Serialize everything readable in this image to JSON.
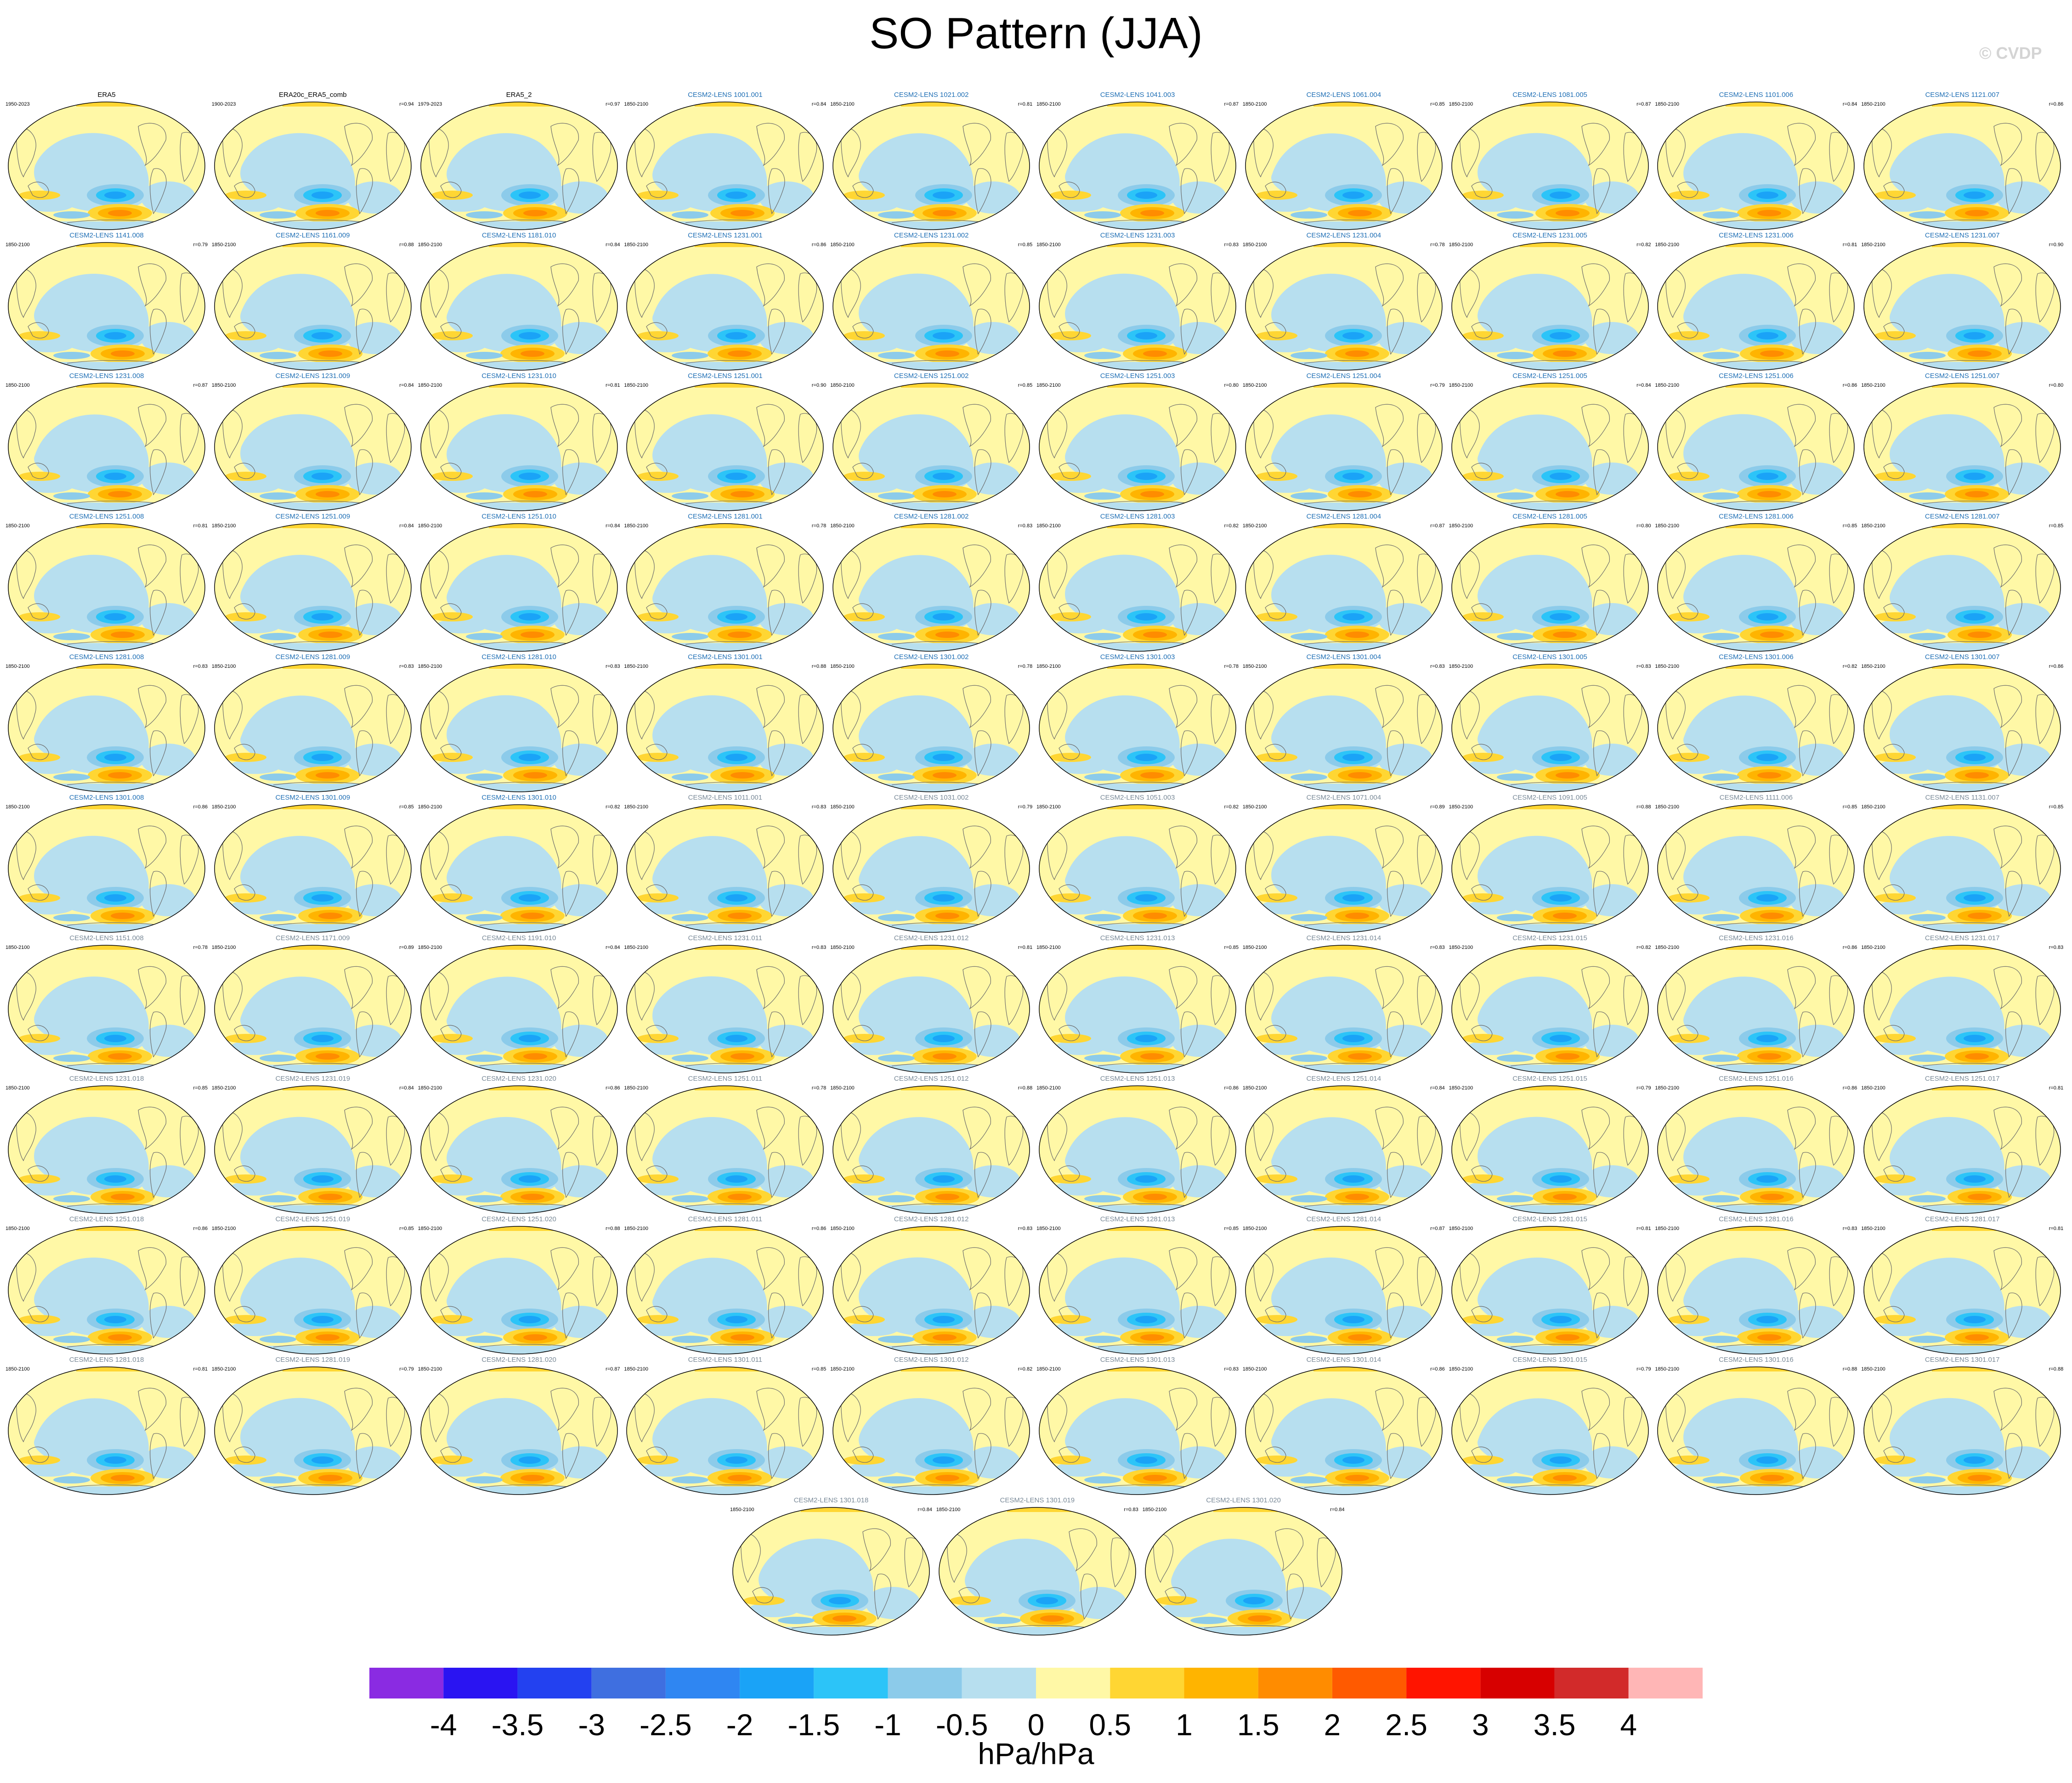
{
  "title": "SO Pattern (JJA)",
  "copyright": "© CVDP",
  "chart_data": {
    "type": "heatmap",
    "description_kind": "map panel grid",
    "units": "hPa/hPa",
    "colorbar": {
      "ticks": [
        "-4",
        "-3.5",
        "-3",
        "-2.5",
        "-2",
        "-1.5",
        "-1",
        "-0.5",
        "0",
        "0.5",
        "1",
        "1.5",
        "2",
        "2.5",
        "3",
        "3.5",
        "4"
      ],
      "colors": [
        "#8a2be2",
        "#2a14f2",
        "#2341f0",
        "#3f6fe0",
        "#2f86f2",
        "#1aa3f7",
        "#2cc4f8",
        "#8ccbea",
        "#b7dfef",
        "#fff8a6",
        "#ffd633",
        "#ffb400",
        "#ff8c00",
        "#ff5a00",
        "#ff1400",
        "#d70000",
        "#d22a2a",
        "#ffb6b6"
      ]
    },
    "panels": [
      {
        "title": "ERA5",
        "years": "1950-2023",
        "r": "",
        "color": "#000000"
      },
      {
        "title": "ERA20c_ERA5_comb",
        "years": "1900-2023",
        "r": "r=0.94",
        "color": "#000000"
      },
      {
        "title": "ERA5_2",
        "years": "1979-2023",
        "r": "r=0.97",
        "color": "#000000"
      },
      {
        "title": "CESM2-LENS 1001.001",
        "years": "1850-2100",
        "r": "r=0.84",
        "color": "#1f6fb5"
      },
      {
        "title": "CESM2-LENS 1021.002",
        "years": "1850-2100",
        "r": "r=0.81",
        "color": "#1f6fb5"
      },
      {
        "title": "CESM2-LENS 1041.003",
        "years": "1850-2100",
        "r": "r=0.87",
        "color": "#1f6fb5"
      },
      {
        "title": "CESM2-LENS 1061.004",
        "years": "1850-2100",
        "r": "r=0.85",
        "color": "#1f6fb5"
      },
      {
        "title": "CESM2-LENS 1081.005",
        "years": "1850-2100",
        "r": "r=0.87",
        "color": "#1f6fb5"
      },
      {
        "title": "CESM2-LENS 1101.006",
        "years": "1850-2100",
        "r": "r=0.84",
        "color": "#1f6fb5"
      },
      {
        "title": "CESM2-LENS 1121.007",
        "years": "1850-2100",
        "r": "r=0.86",
        "color": "#1f6fb5"
      },
      {
        "title": "CESM2-LENS 1141.008",
        "years": "1850-2100",
        "r": "r=0.79",
        "color": "#1f6fb5"
      },
      {
        "title": "CESM2-LENS 1161.009",
        "years": "1850-2100",
        "r": "r=0.88",
        "color": "#1f6fb5"
      },
      {
        "title": "CESM2-LENS 1181.010",
        "years": "1850-2100",
        "r": "r=0.84",
        "color": "#1f6fb5"
      },
      {
        "title": "CESM2-LENS 1231.001",
        "years": "1850-2100",
        "r": "r=0.86",
        "color": "#1f6fb5"
      },
      {
        "title": "CESM2-LENS 1231.002",
        "years": "1850-2100",
        "r": "r=0.85",
        "color": "#1f6fb5"
      },
      {
        "title": "CESM2-LENS 1231.003",
        "years": "1850-2100",
        "r": "r=0.83",
        "color": "#1f6fb5"
      },
      {
        "title": "CESM2-LENS 1231.004",
        "years": "1850-2100",
        "r": "r=0.78",
        "color": "#1f6fb5"
      },
      {
        "title": "CESM2-LENS 1231.005",
        "years": "1850-2100",
        "r": "r=0.82",
        "color": "#1f6fb5"
      },
      {
        "title": "CESM2-LENS 1231.006",
        "years": "1850-2100",
        "r": "r=0.81",
        "color": "#1f6fb5"
      },
      {
        "title": "CESM2-LENS 1231.007",
        "years": "1850-2100",
        "r": "r=0.90",
        "color": "#1f6fb5"
      },
      {
        "title": "CESM2-LENS 1231.008",
        "years": "1850-2100",
        "r": "r=0.87",
        "color": "#1f6fb5"
      },
      {
        "title": "CESM2-LENS 1231.009",
        "years": "1850-2100",
        "r": "r=0.84",
        "color": "#1f6fb5"
      },
      {
        "title": "CESM2-LENS 1231.010",
        "years": "1850-2100",
        "r": "r=0.81",
        "color": "#1f6fb5"
      },
      {
        "title": "CESM2-LENS 1251.001",
        "years": "1850-2100",
        "r": "r=0.90",
        "color": "#1f6fb5"
      },
      {
        "title": "CESM2-LENS 1251.002",
        "years": "1850-2100",
        "r": "r=0.85",
        "color": "#1f6fb5"
      },
      {
        "title": "CESM2-LENS 1251.003",
        "years": "1850-2100",
        "r": "r=0.80",
        "color": "#1f6fb5"
      },
      {
        "title": "CESM2-LENS 1251.004",
        "years": "1850-2100",
        "r": "r=0.79",
        "color": "#1f6fb5"
      },
      {
        "title": "CESM2-LENS 1251.005",
        "years": "1850-2100",
        "r": "r=0.84",
        "color": "#1f6fb5"
      },
      {
        "title": "CESM2-LENS 1251.006",
        "years": "1850-2100",
        "r": "r=0.86",
        "color": "#1f6fb5"
      },
      {
        "title": "CESM2-LENS 1251.007",
        "years": "1850-2100",
        "r": "r=0.80",
        "color": "#1f6fb5"
      },
      {
        "title": "CESM2-LENS 1251.008",
        "years": "1850-2100",
        "r": "r=0.81",
        "color": "#1f6fb5"
      },
      {
        "title": "CESM2-LENS 1251.009",
        "years": "1850-2100",
        "r": "r=0.84",
        "color": "#1f6fb5"
      },
      {
        "title": "CESM2-LENS 1251.010",
        "years": "1850-2100",
        "r": "r=0.84",
        "color": "#1f6fb5"
      },
      {
        "title": "CESM2-LENS 1281.001",
        "years": "1850-2100",
        "r": "r=0.78",
        "color": "#1f6fb5"
      },
      {
        "title": "CESM2-LENS 1281.002",
        "years": "1850-2100",
        "r": "r=0.83",
        "color": "#1f6fb5"
      },
      {
        "title": "CESM2-LENS 1281.003",
        "years": "1850-2100",
        "r": "r=0.82",
        "color": "#1f6fb5"
      },
      {
        "title": "CESM2-LENS 1281.004",
        "years": "1850-2100",
        "r": "r=0.87",
        "color": "#1f6fb5"
      },
      {
        "title": "CESM2-LENS 1281.005",
        "years": "1850-2100",
        "r": "r=0.80",
        "color": "#1f6fb5"
      },
      {
        "title": "CESM2-LENS 1281.006",
        "years": "1850-2100",
        "r": "r=0.85",
        "color": "#1f6fb5"
      },
      {
        "title": "CESM2-LENS 1281.007",
        "years": "1850-2100",
        "r": "r=0.85",
        "color": "#1f6fb5"
      },
      {
        "title": "CESM2-LENS 1281.008",
        "years": "1850-2100",
        "r": "r=0.83",
        "color": "#1f6fb5"
      },
      {
        "title": "CESM2-LENS 1281.009",
        "years": "1850-2100",
        "r": "r=0.83",
        "color": "#1f6fb5"
      },
      {
        "title": "CESM2-LENS 1281.010",
        "years": "1850-2100",
        "r": "r=0.83",
        "color": "#1f6fb5"
      },
      {
        "title": "CESM2-LENS 1301.001",
        "years": "1850-2100",
        "r": "r=0.88",
        "color": "#1f6fb5"
      },
      {
        "title": "CESM2-LENS 1301.002",
        "years": "1850-2100",
        "r": "r=0.78",
        "color": "#1f6fb5"
      },
      {
        "title": "CESM2-LENS 1301.003",
        "years": "1850-2100",
        "r": "r=0.78",
        "color": "#1f6fb5"
      },
      {
        "title": "CESM2-LENS 1301.004",
        "years": "1850-2100",
        "r": "r=0.83",
        "color": "#1f6fb5"
      },
      {
        "title": "CESM2-LENS 1301.005",
        "years": "1850-2100",
        "r": "r=0.83",
        "color": "#1f6fb5"
      },
      {
        "title": "CESM2-LENS 1301.006",
        "years": "1850-2100",
        "r": "r=0.82",
        "color": "#1f6fb5"
      },
      {
        "title": "CESM2-LENS 1301.007",
        "years": "1850-2100",
        "r": "r=0.86",
        "color": "#1f6fb5"
      },
      {
        "title": "CESM2-LENS 1301.008",
        "years": "1850-2100",
        "r": "r=0.86",
        "color": "#1f6fb5"
      },
      {
        "title": "CESM2-LENS 1301.009",
        "years": "1850-2100",
        "r": "r=0.85",
        "color": "#1f6fb5"
      },
      {
        "title": "CESM2-LENS 1301.010",
        "years": "1850-2100",
        "r": "r=0.82",
        "color": "#1f6fb5"
      },
      {
        "title": "CESM2-LENS 1011.001",
        "years": "1850-2100",
        "r": "r=0.83",
        "color": "#7a8a98"
      },
      {
        "title": "CESM2-LENS 1031.002",
        "years": "1850-2100",
        "r": "r=0.79",
        "color": "#7a8a98"
      },
      {
        "title": "CESM2-LENS 1051.003",
        "years": "1850-2100",
        "r": "r=0.82",
        "color": "#7a8a98"
      },
      {
        "title": "CESM2-LENS 1071.004",
        "years": "1850-2100",
        "r": "r=0.89",
        "color": "#7a8a98"
      },
      {
        "title": "CESM2-LENS 1091.005",
        "years": "1850-2100",
        "r": "r=0.88",
        "color": "#7a8a98"
      },
      {
        "title": "CESM2-LENS 1111.006",
        "years": "1850-2100",
        "r": "r=0.85",
        "color": "#7a8a98"
      },
      {
        "title": "CESM2-LENS 1131.007",
        "years": "1850-2100",
        "r": "r=0.85",
        "color": "#7a8a98"
      },
      {
        "title": "CESM2-LENS 1151.008",
        "years": "1850-2100",
        "r": "r=0.78",
        "color": "#7a8a98"
      },
      {
        "title": "CESM2-LENS 1171.009",
        "years": "1850-2100",
        "r": "r=0.89",
        "color": "#7a8a98"
      },
      {
        "title": "CESM2-LENS 1191.010",
        "years": "1850-2100",
        "r": "r=0.84",
        "color": "#7a8a98"
      },
      {
        "title": "CESM2-LENS 1231.011",
        "years": "1850-2100",
        "r": "r=0.83",
        "color": "#7a8a98"
      },
      {
        "title": "CESM2-LENS 1231.012",
        "years": "1850-2100",
        "r": "r=0.81",
        "color": "#7a8a98"
      },
      {
        "title": "CESM2-LENS 1231.013",
        "years": "1850-2100",
        "r": "r=0.85",
        "color": "#7a8a98"
      },
      {
        "title": "CESM2-LENS 1231.014",
        "years": "1850-2100",
        "r": "r=0.83",
        "color": "#7a8a98"
      },
      {
        "title": "CESM2-LENS 1231.015",
        "years": "1850-2100",
        "r": "r=0.82",
        "color": "#7a8a98"
      },
      {
        "title": "CESM2-LENS 1231.016",
        "years": "1850-2100",
        "r": "r=0.86",
        "color": "#7a8a98"
      },
      {
        "title": "CESM2-LENS 1231.017",
        "years": "1850-2100",
        "r": "r=0.83",
        "color": "#7a8a98"
      },
      {
        "title": "CESM2-LENS 1231.018",
        "years": "1850-2100",
        "r": "r=0.85",
        "color": "#7a8a98"
      },
      {
        "title": "CESM2-LENS 1231.019",
        "years": "1850-2100",
        "r": "r=0.84",
        "color": "#7a8a98"
      },
      {
        "title": "CESM2-LENS 1231.020",
        "years": "1850-2100",
        "r": "r=0.86",
        "color": "#7a8a98"
      },
      {
        "title": "CESM2-LENS 1251.011",
        "years": "1850-2100",
        "r": "r=0.78",
        "color": "#7a8a98"
      },
      {
        "title": "CESM2-LENS 1251.012",
        "years": "1850-2100",
        "r": "r=0.88",
        "color": "#7a8a98"
      },
      {
        "title": "CESM2-LENS 1251.013",
        "years": "1850-2100",
        "r": "r=0.86",
        "color": "#7a8a98"
      },
      {
        "title": "CESM2-LENS 1251.014",
        "years": "1850-2100",
        "r": "r=0.84",
        "color": "#7a8a98"
      },
      {
        "title": "CESM2-LENS 1251.015",
        "years": "1850-2100",
        "r": "r=0.79",
        "color": "#7a8a98"
      },
      {
        "title": "CESM2-LENS 1251.016",
        "years": "1850-2100",
        "r": "r=0.86",
        "color": "#7a8a98"
      },
      {
        "title": "CESM2-LENS 1251.017",
        "years": "1850-2100",
        "r": "r=0.81",
        "color": "#7a8a98"
      },
      {
        "title": "CESM2-LENS 1251.018",
        "years": "1850-2100",
        "r": "r=0.86",
        "color": "#7a8a98"
      },
      {
        "title": "CESM2-LENS 1251.019",
        "years": "1850-2100",
        "r": "r=0.85",
        "color": "#7a8a98"
      },
      {
        "title": "CESM2-LENS 1251.020",
        "years": "1850-2100",
        "r": "r=0.88",
        "color": "#7a8a98"
      },
      {
        "title": "CESM2-LENS 1281.011",
        "years": "1850-2100",
        "r": "r=0.86",
        "color": "#7a8a98"
      },
      {
        "title": "CESM2-LENS 1281.012",
        "years": "1850-2100",
        "r": "r=0.83",
        "color": "#7a8a98"
      },
      {
        "title": "CESM2-LENS 1281.013",
        "years": "1850-2100",
        "r": "r=0.85",
        "color": "#7a8a98"
      },
      {
        "title": "CESM2-LENS 1281.014",
        "years": "1850-2100",
        "r": "r=0.87",
        "color": "#7a8a98"
      },
      {
        "title": "CESM2-LENS 1281.015",
        "years": "1850-2100",
        "r": "r=0.81",
        "color": "#7a8a98"
      },
      {
        "title": "CESM2-LENS 1281.016",
        "years": "1850-2100",
        "r": "r=0.83",
        "color": "#7a8a98"
      },
      {
        "title": "CESM2-LENS 1281.017",
        "years": "1850-2100",
        "r": "r=0.81",
        "color": "#7a8a98"
      },
      {
        "title": "CESM2-LENS 1281.018",
        "years": "1850-2100",
        "r": "r=0.81",
        "color": "#7a8a98"
      },
      {
        "title": "CESM2-LENS 1281.019",
        "years": "1850-2100",
        "r": "r=0.79",
        "color": "#7a8a98"
      },
      {
        "title": "CESM2-LENS 1281.020",
        "years": "1850-2100",
        "r": "r=0.87",
        "color": "#7a8a98"
      },
      {
        "title": "CESM2-LENS 1301.011",
        "years": "1850-2100",
        "r": "r=0.85",
        "color": "#7a8a98"
      },
      {
        "title": "CESM2-LENS 1301.012",
        "years": "1850-2100",
        "r": "r=0.82",
        "color": "#7a8a98"
      },
      {
        "title": "CESM2-LENS 1301.013",
        "years": "1850-2100",
        "r": "r=0.83",
        "color": "#7a8a98"
      },
      {
        "title": "CESM2-LENS 1301.014",
        "years": "1850-2100",
        "r": "r=0.86",
        "color": "#7a8a98"
      },
      {
        "title": "CESM2-LENS 1301.015",
        "years": "1850-2100",
        "r": "r=0.79",
        "color": "#7a8a98"
      },
      {
        "title": "CESM2-LENS 1301.016",
        "years": "1850-2100",
        "r": "r=0.88",
        "color": "#7a8a98"
      },
      {
        "title": "CESM2-LENS 1301.017",
        "years": "1850-2100",
        "r": "r=0.88",
        "color": "#7a8a98"
      },
      {
        "title": "CESM2-LENS 1301.018",
        "years": "1850-2100",
        "r": "r=0.84",
        "color": "#7a8a98"
      },
      {
        "title": "CESM2-LENS 1301.019",
        "years": "1850-2100",
        "r": "r=0.83",
        "color": "#7a8a98"
      },
      {
        "title": "CESM2-LENS 1301.020",
        "years": "1850-2100",
        "r": "r=0.84",
        "color": "#7a8a98"
      }
    ]
  }
}
